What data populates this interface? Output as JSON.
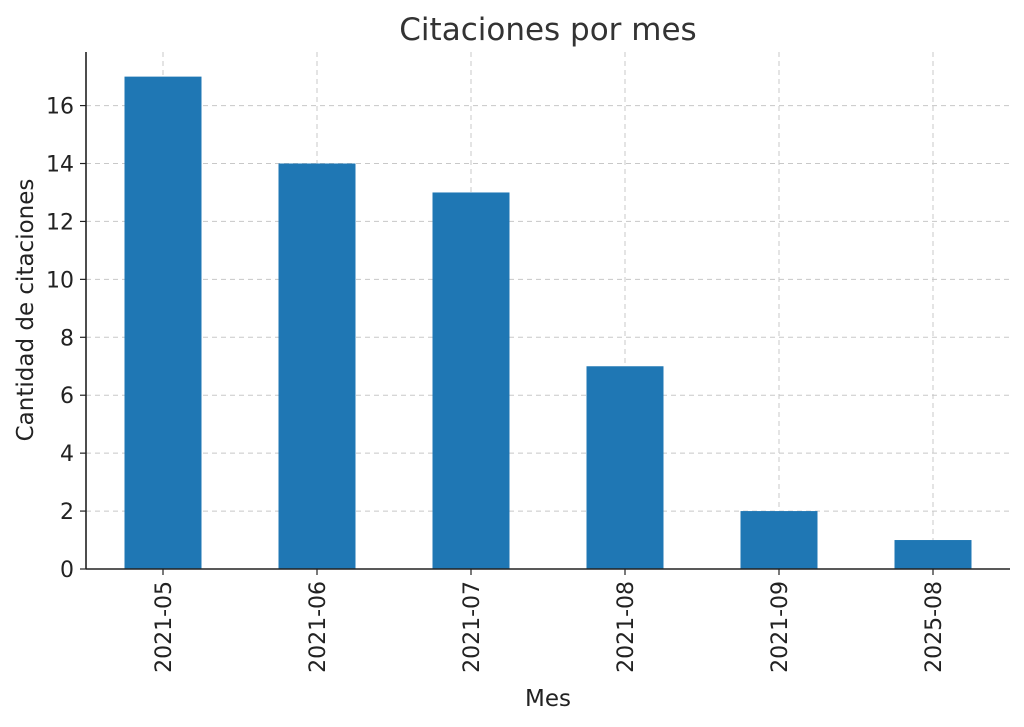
{
  "chart_data": {
    "type": "bar",
    "title": "Citaciones por mes",
    "xlabel": "Mes",
    "ylabel": "Cantidad de citaciones",
    "categories": [
      "2021-05",
      "2021-06",
      "2021-07",
      "2021-08",
      "2021-09",
      "2025-08"
    ],
    "values": [
      17,
      14,
      13,
      7,
      2,
      1
    ],
    "ylim": [
      0,
      17.85
    ],
    "yticks": [
      0,
      2,
      4,
      6,
      8,
      10,
      12,
      14,
      16
    ],
    "grid": true,
    "legend": "none",
    "colors": {
      "bar": "#1f77b4"
    }
  }
}
